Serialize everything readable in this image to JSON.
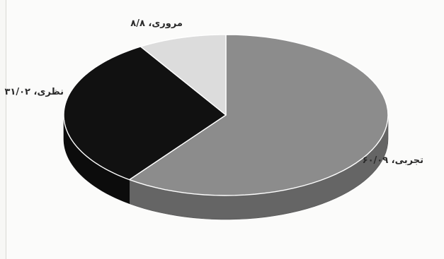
{
  "chart_data": {
    "type": "pie",
    "title": "",
    "style": "3d",
    "slices": [
      {
        "label": "تجربی، ۶۰/۰۹",
        "name": "تجربی",
        "value": 60.09,
        "color": "#8c8c8c"
      },
      {
        "label": "نظری، ۳۱/۰۲",
        "name": "نظری",
        "value": 31.02,
        "color": "#111111"
      },
      {
        "label": "مروری، ۸/۸",
        "name": "مروری",
        "value": 8.8,
        "color": "#dcdcdc"
      }
    ]
  }
}
